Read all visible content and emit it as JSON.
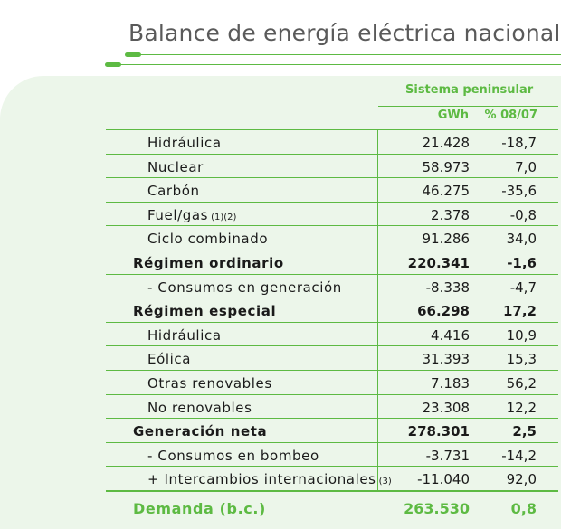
{
  "title": "Balance de energía eléctrica nacional",
  "header": {
    "system": "Sistema peninsular",
    "unit_col": "GWh",
    "pct_col": "% 08/07"
  },
  "rows": [
    {
      "label": "Hidráulica",
      "note": "",
      "gwh": "21.428",
      "pct": "-18,7"
    },
    {
      "label": "Nuclear",
      "note": "",
      "gwh": "58.973",
      "pct": "7,0"
    },
    {
      "label": "Carbón",
      "note": "",
      "gwh": "46.275",
      "pct": "-35,6"
    },
    {
      "label": "Fuel/gas",
      "note": "(1)(2)",
      "gwh": "2.378",
      "pct": "-0,8"
    },
    {
      "label": "Ciclo combinado",
      "note": "",
      "gwh": "91.286",
      "pct": "34,0"
    },
    {
      "label": "Régimen ordinario",
      "note": "",
      "gwh": "220.341",
      "pct": "-1,6"
    },
    {
      "label": "- Consumos en generación",
      "note": "",
      "gwh": "-8.338",
      "pct": "-4,7"
    },
    {
      "label": "Régimen especial",
      "note": "",
      "gwh": "66.298",
      "pct": "17,2"
    },
    {
      "label": "Hidráulica",
      "note": "",
      "gwh": "4.416",
      "pct": "10,9"
    },
    {
      "label": "Eólica",
      "note": "",
      "gwh": "31.393",
      "pct": "15,3"
    },
    {
      "label": "Otras renovables",
      "note": "",
      "gwh": "7.183",
      "pct": "56,2"
    },
    {
      "label": "No renovables",
      "note": "",
      "gwh": "23.308",
      "pct": "12,2"
    },
    {
      "label": "Generación neta",
      "note": "",
      "gwh": "278.301",
      "pct": "2,5"
    },
    {
      "label": "- Consumos en bombeo",
      "note": "",
      "gwh": "-3.731",
      "pct": "-14,2"
    },
    {
      "label": "+ Intercambios internacionales",
      "note": "(3)",
      "gwh": "-11.040",
      "pct": "92,0"
    }
  ],
  "total": {
    "label": "Demanda (b.c.)",
    "gwh": "263.530",
    "pct": "0,8"
  },
  "colors": {
    "accent": "#5dba43",
    "panel": "#ecf6ea"
  }
}
